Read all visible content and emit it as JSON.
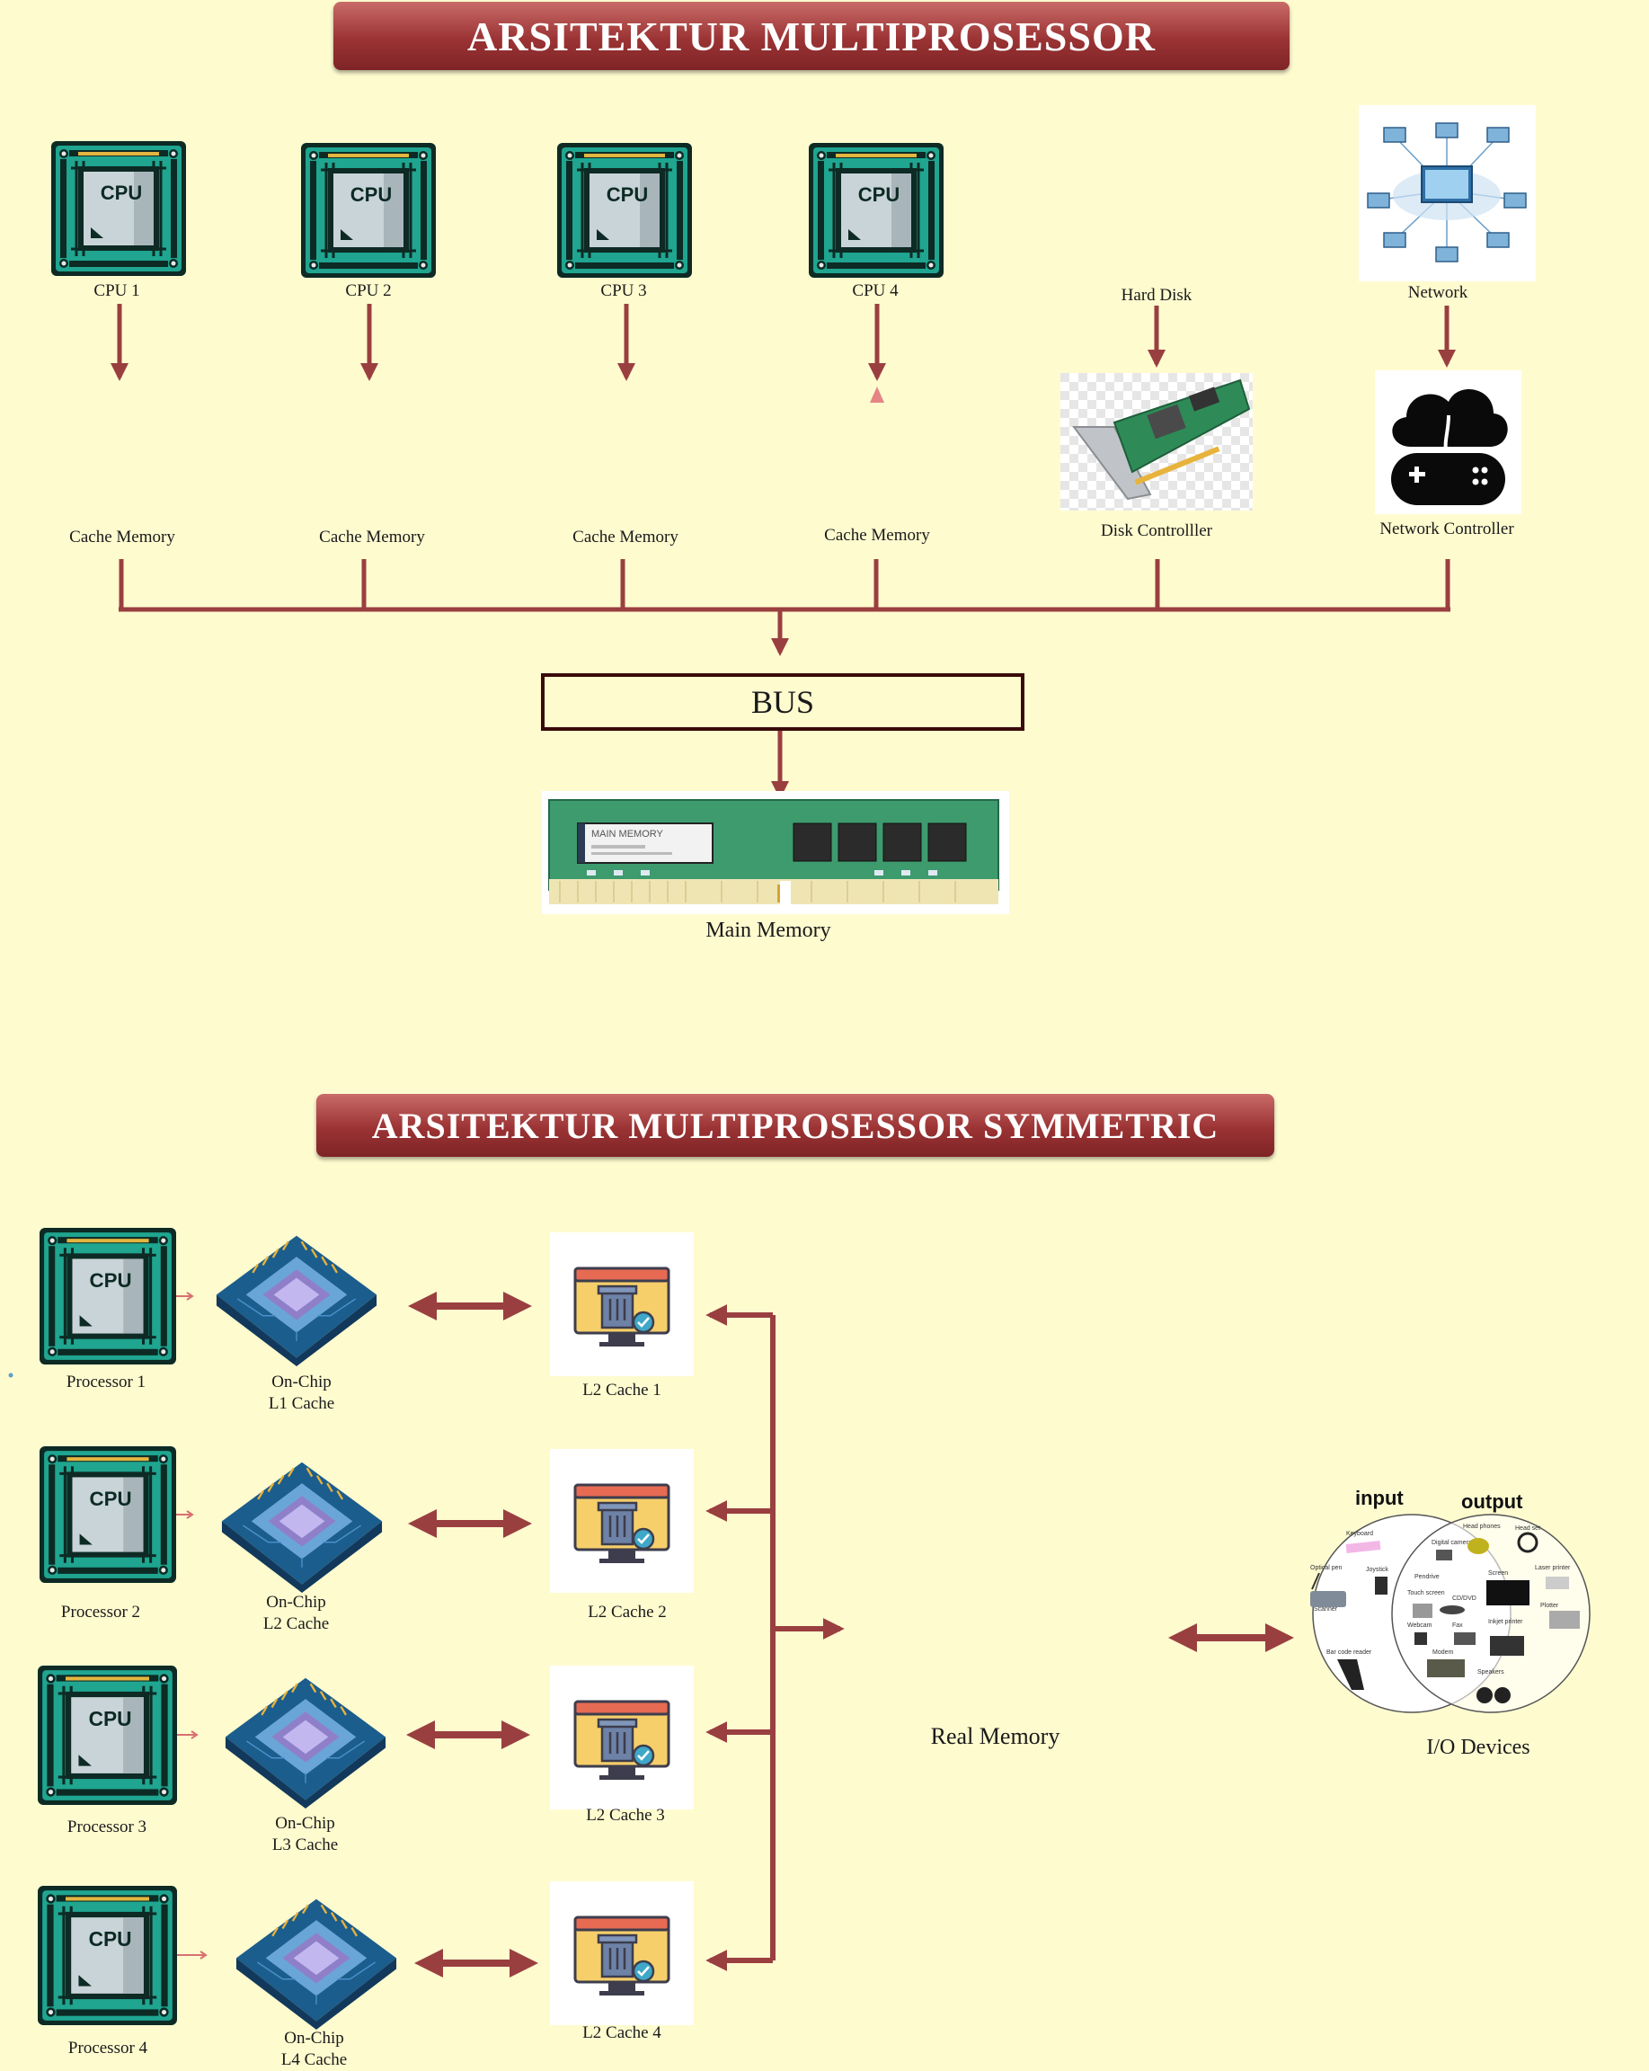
{
  "section1": {
    "title": "ARSITEKTUR MULTIPROSESSOR",
    "cpus": [
      {
        "label": "CPU 1",
        "cache": "Cache Memory"
      },
      {
        "label": "CPU 2",
        "cache": "Cache Memory"
      },
      {
        "label": "CPU 3",
        "cache": "Cache Memory"
      },
      {
        "label": "CPU 4",
        "cache": "Cache Memory"
      }
    ],
    "chip_text": "CPU",
    "hard_disk": "Hard Disk",
    "disk_controller": "Disk Controlller",
    "network": "Network",
    "network_controller": "Network Controller",
    "bus": "BUS",
    "main_memory": "Main Memory",
    "memory_stick_text": "MAIN MEMORY"
  },
  "section2": {
    "title": "ARSITEKTUR MULTIPROSESSOR SYMMETRIC",
    "rows": [
      {
        "processor": "Processor 1",
        "onchip_1": "On-Chip",
        "onchip_2": "L1 Cache",
        "l2": "L2 Cache 1"
      },
      {
        "processor": "Processor 2",
        "onchip_1": "On-Chip",
        "onchip_2": "L2 Cache",
        "l2": "L2 Cache 2"
      },
      {
        "processor": "Processor 3",
        "onchip_1": "On-Chip",
        "onchip_2": "L3 Cache",
        "l2": "L2 Cache 3"
      },
      {
        "processor": "Processor 4",
        "onchip_1": "On-Chip",
        "onchip_2": "L4 Cache",
        "l2": "L2 Cache 4"
      }
    ],
    "real_memory": "Real Memory",
    "io_devices": "I/O Devices",
    "io_input": "input",
    "io_output": "output",
    "io_items": [
      "Keyboard",
      "Digital camera",
      "Head phones",
      "Head set",
      "Optical pen",
      "Joystick",
      "Pendrive",
      "Screen",
      "Laser printer",
      "Touch screen",
      "CD/DVD",
      "Scanner",
      "Webcam",
      "Fax",
      "Inkjet printer",
      "Plotter",
      "Bar code reader",
      "Modem",
      "Speakers"
    ]
  },
  "colors": {
    "background": "#fefbcf",
    "arrow": "#9a3f40",
    "banner": "#9b3334",
    "chip_green": "#1fa590"
  }
}
